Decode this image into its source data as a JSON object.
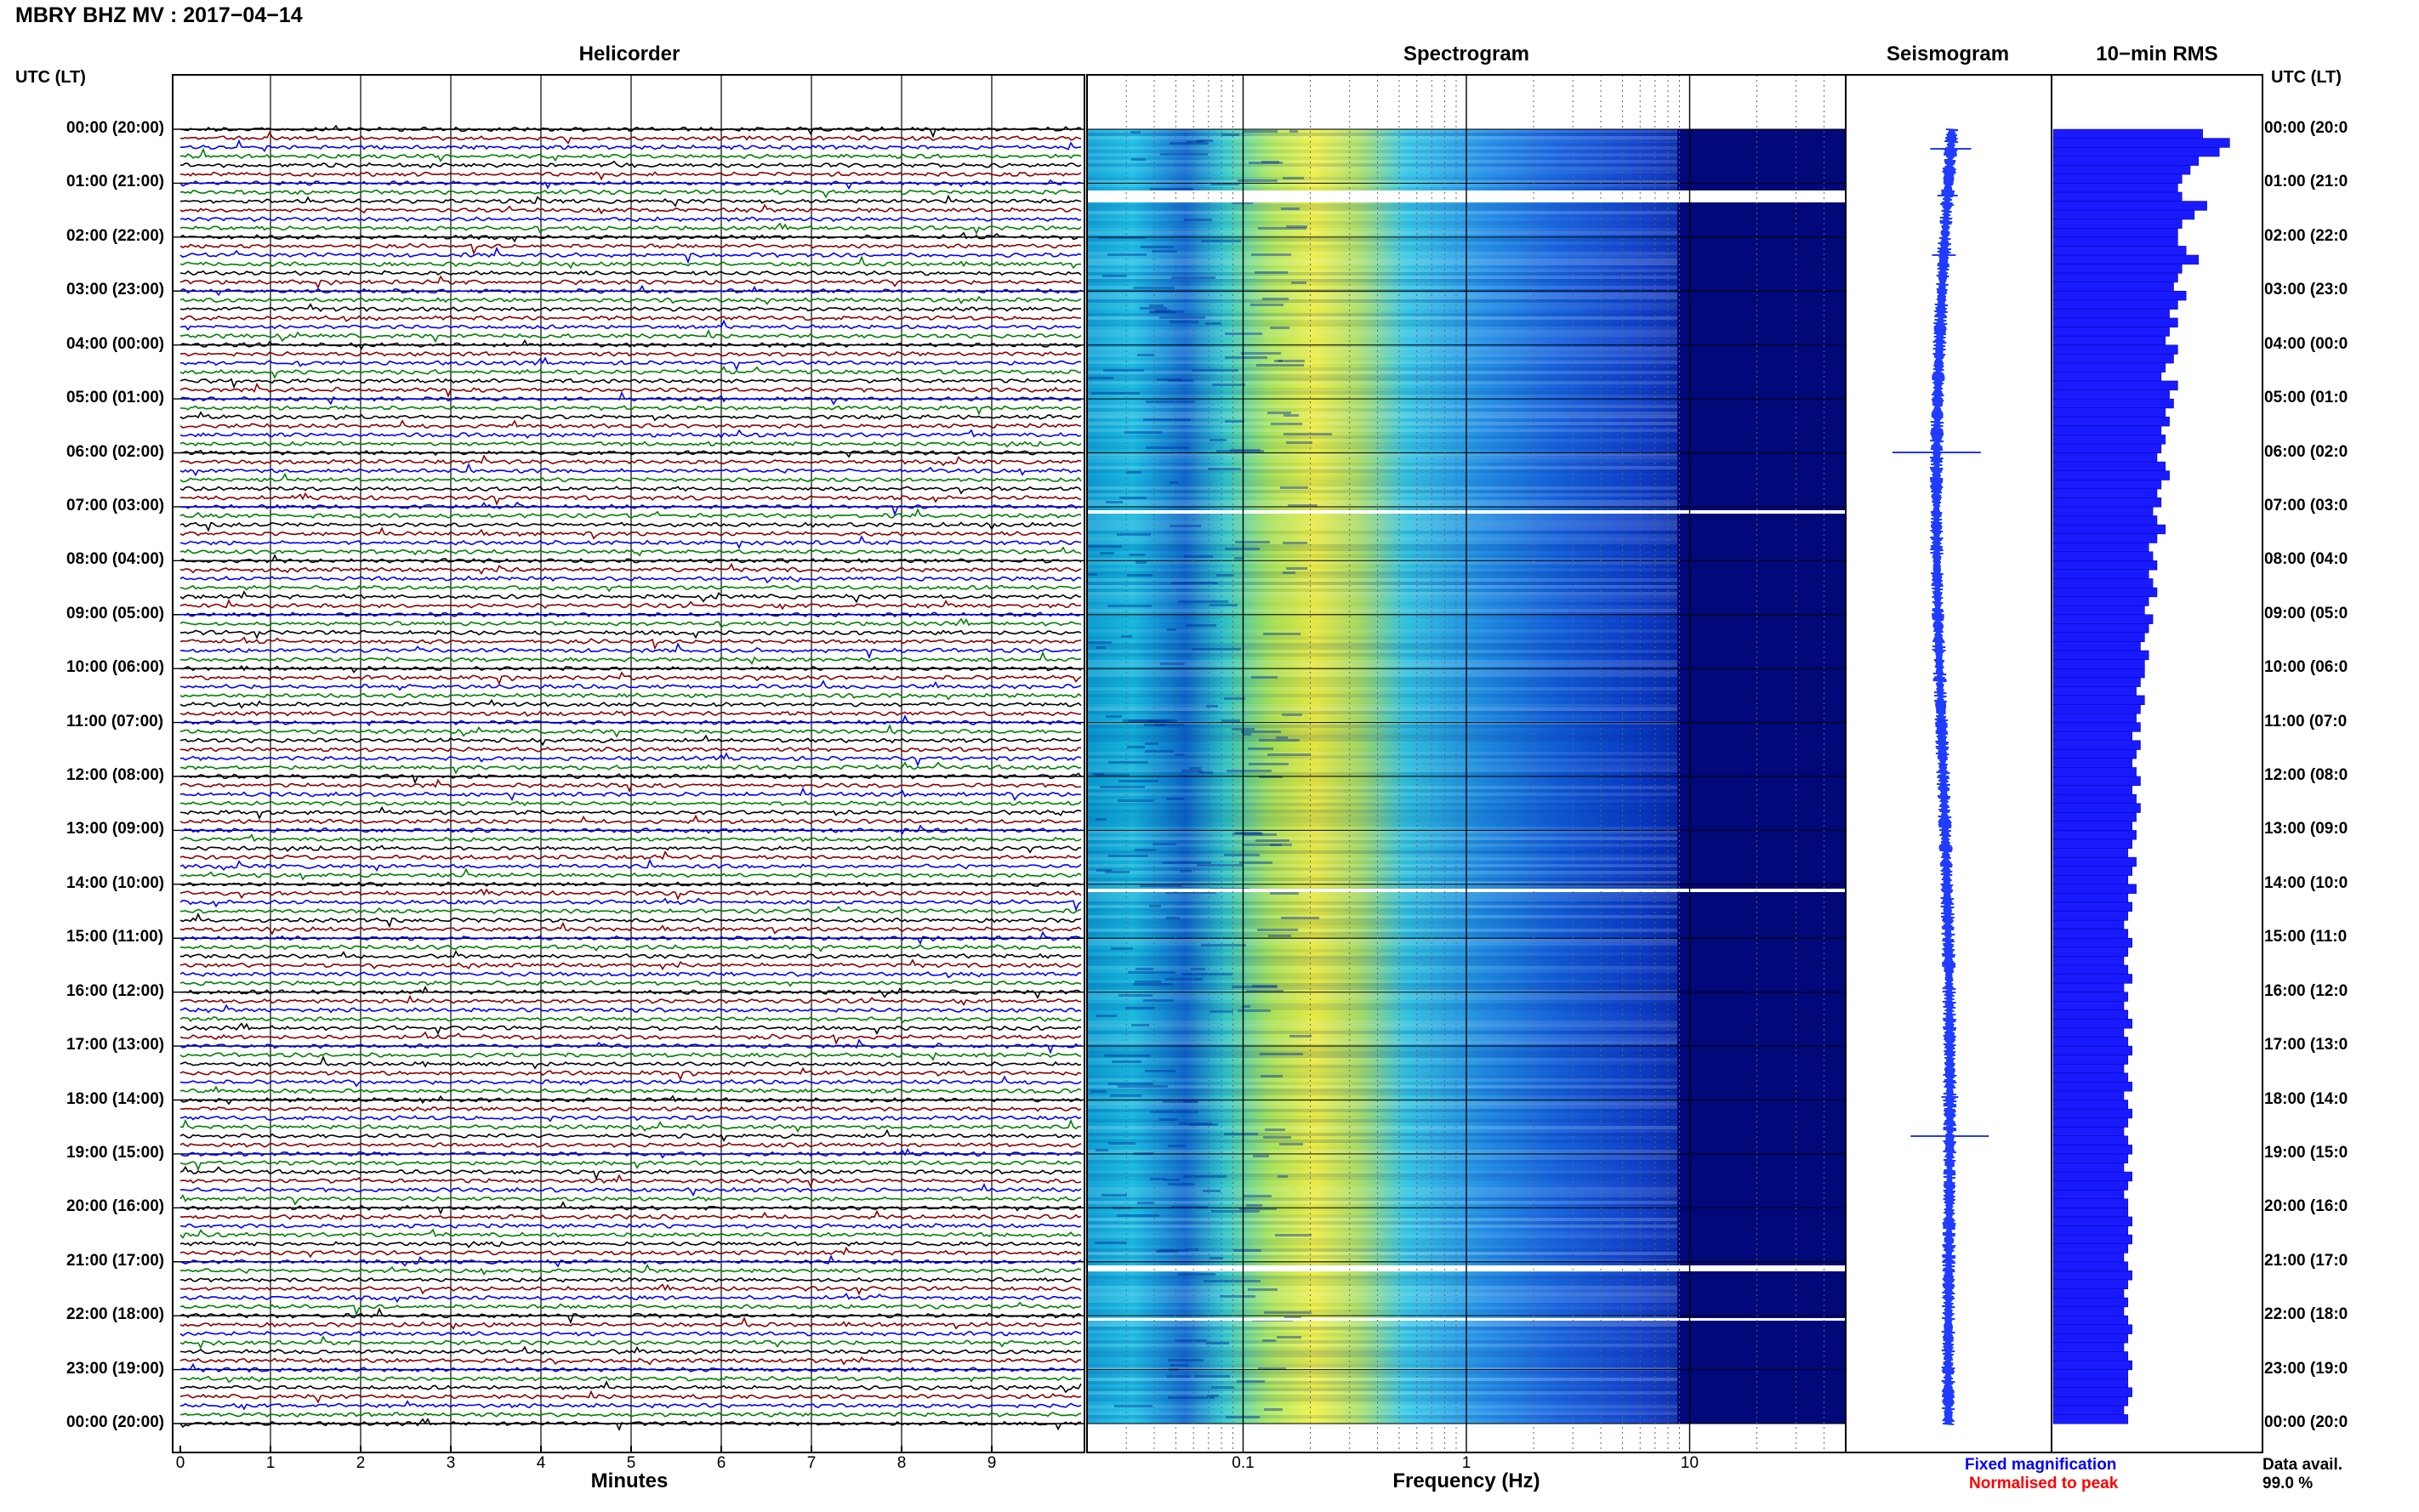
{
  "header": {
    "title": "MBRY BHZ MV : 2017−04−14"
  },
  "panels": {
    "helicorder": "Helicorder",
    "spectrogram": "Spectrogram",
    "seismogram": "Seismogram",
    "rms": "10−min RMS"
  },
  "utc_header": "UTC (LT)",
  "time_labels": [
    "00:00 (20:00)",
    "01:00 (21:00)",
    "02:00 (22:00)",
    "03:00 (23:00)",
    "04:00 (00:00)",
    "05:00 (01:00)",
    "06:00 (02:00)",
    "07:00 (03:00)",
    "08:00 (04:00)",
    "09:00 (05:00)",
    "10:00 (06:00)",
    "11:00 (07:00)",
    "12:00 (08:00)",
    "13:00 (09:00)",
    "14:00 (10:00)",
    "15:00 (11:00)",
    "16:00 (12:00)",
    "17:00 (13:00)",
    "18:00 (14:00)",
    "19:00 (15:00)",
    "20:00 (16:00)",
    "21:00 (17:00)",
    "22:00 (18:00)",
    "23:00 (19:00)",
    "00:00 (20:00)"
  ],
  "time_labels_right": [
    "00:00 (20:0",
    "01:00 (21:0",
    "02:00 (22:0",
    "03:00 (23:0",
    "04:00 (00:0",
    "05:00 (01:0",
    "06:00 (02:0",
    "07:00 (03:0",
    "08:00 (04:0",
    "09:00 (05:0",
    "10:00 (06:0",
    "11:00 (07:0",
    "12:00 (08:0",
    "13:00 (09:0",
    "14:00 (10:0",
    "15:00 (11:0",
    "16:00 (12:0",
    "17:00 (13:0",
    "18:00 (14:0",
    "19:00 (15:0",
    "20:00 (16:0",
    "21:00 (17:0",
    "22:00 (18:0",
    "23:00 (19:0",
    "00:00 (20:0"
  ],
  "helicorder_axis": {
    "label": "Minutes",
    "ticks": [
      "0",
      "1",
      "2",
      "3",
      "4",
      "5",
      "6",
      "7",
      "8",
      "9"
    ]
  },
  "spectrogram_axis": {
    "label": "Frequency (Hz)",
    "ticks": [
      "0.1",
      "1",
      "10"
    ],
    "tick_values": [
      0.1,
      1,
      10
    ],
    "scale": "log",
    "xlim": [
      0.02,
      50
    ]
  },
  "legend": {
    "fixed": "Fixed magnification",
    "normalised": "Normalised to peak",
    "fixed_color": "#0000ff",
    "normalised_color": "#ff0000"
  },
  "data_availability": {
    "label": "Data avail.",
    "value": "99.0 %"
  },
  "colors": {
    "trace_cycle": [
      "#000000",
      "#8b0000",
      "#0000ff",
      "#008000"
    ],
    "seismogram": "#1f3cff",
    "rms": "#1a1aff",
    "spec_low": "#00008b",
    "spec_mid": "#00bfff",
    "spec_high": "#ffff33"
  },
  "chart_data": {
    "type": "heatmap",
    "title": "MBRY BHZ MV : 2017−04−14",
    "subplots": [
      "Helicorder",
      "Spectrogram",
      "Seismogram",
      "10−min RMS"
    ],
    "hours_utc": [
      "00:00",
      "01:00",
      "02:00",
      "03:00",
      "04:00",
      "05:00",
      "06:00",
      "07:00",
      "08:00",
      "09:00",
      "10:00",
      "11:00",
      "12:00",
      "13:00",
      "14:00",
      "15:00",
      "16:00",
      "17:00",
      "18:00",
      "19:00",
      "20:00",
      "21:00",
      "22:00",
      "23:00",
      "00:00"
    ],
    "helicorder": {
      "xlabel": "Minutes",
      "xlim": [
        0,
        10
      ],
      "rows_per_hour": 6
    },
    "spectrogram": {
      "xlabel": "Frequency (Hz)",
      "xscale": "log",
      "peak_frequency_hz": 0.25,
      "data_gaps_utc": [
        "01:10",
        "07:06",
        "14:03",
        "21:08",
        "22:03"
      ]
    },
    "rms_relative": [
      0.72,
      0.85,
      0.8,
      0.7,
      0.66,
      0.62,
      0.6,
      0.62,
      0.74,
      0.68,
      0.62,
      0.6,
      0.6,
      0.64,
      0.7,
      0.62,
      0.6,
      0.58,
      0.64,
      0.6,
      0.56,
      0.6,
      0.56,
      0.54,
      0.6,
      0.58,
      0.54,
      0.52,
      0.6,
      0.56,
      0.58,
      0.54,
      0.56,
      0.52,
      0.54,
      0.52,
      0.5,
      0.54,
      0.56,
      0.52,
      0.5,
      0.52,
      0.48,
      0.5,
      0.54,
      0.5,
      0.46,
      0.48,
      0.5,
      0.46,
      0.48,
      0.5,
      0.46,
      0.44,
      0.48,
      0.46,
      0.44,
      0.42,
      0.46,
      0.44,
      0.44,
      0.42,
      0.4,
      0.44,
      0.42,
      0.4,
      0.42,
      0.38,
      0.42,
      0.4,
      0.38,
      0.4,
      0.42,
      0.38,
      0.4,
      0.42,
      0.4,
      0.38,
      0.4,
      0.38,
      0.36,
      0.4,
      0.38,
      0.36,
      0.4,
      0.36,
      0.38,
      0.36,
      0.34,
      0.36,
      0.38,
      0.36,
      0.34,
      0.36,
      0.38,
      0.34,
      0.36,
      0.34,
      0.36,
      0.38,
      0.34,
      0.36,
      0.38,
      0.36,
      0.34,
      0.36,
      0.38,
      0.34,
      0.36,
      0.38,
      0.36,
      0.34,
      0.36,
      0.38,
      0.36,
      0.34,
      0.38,
      0.36,
      0.34,
      0.36,
      0.36,
      0.38,
      0.36,
      0.38,
      0.36,
      0.34,
      0.36,
      0.38,
      0.36,
      0.34,
      0.36,
      0.34,
      0.36,
      0.38,
      0.36,
      0.34,
      0.36,
      0.38,
      0.36,
      0.36,
      0.38,
      0.36,
      0.34,
      0.36
    ]
  }
}
